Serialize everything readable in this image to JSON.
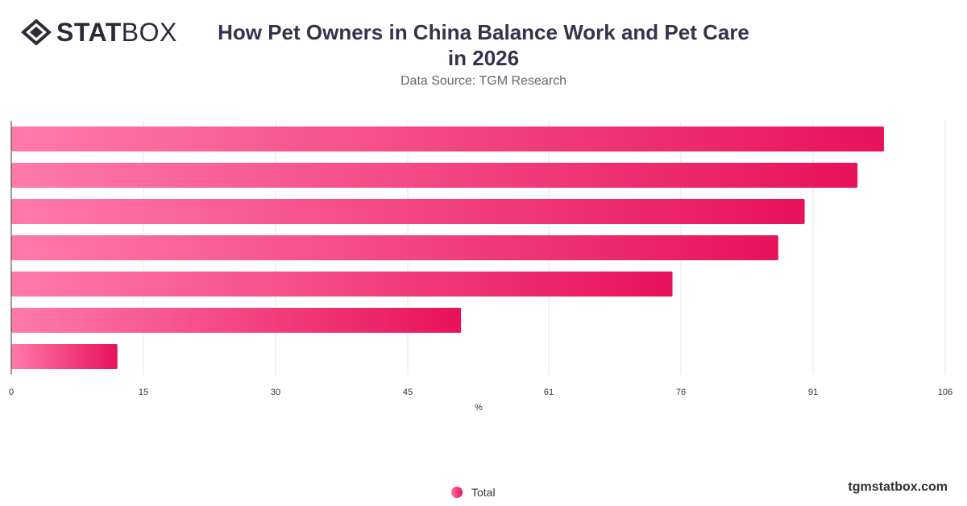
{
  "brand": {
    "logo_bold": "STAT",
    "logo_light": "BOX",
    "website": "tgmstatbox.com"
  },
  "header": {
    "title_line1": "How Pet Owners in China Balance Work and Pet Care",
    "title_line2": "in 2026",
    "subtitle": "Data Source: TGM Research"
  },
  "colors": {
    "bar_start": "#ff7aab",
    "bar_end": "#e8125c",
    "grid": "#e6e6e6",
    "axis": "#333333",
    "text": "#333333"
  },
  "chart_data": {
    "type": "bar",
    "orientation": "horizontal",
    "categories": [
      "",
      "",
      "",
      "",
      "",
      "",
      ""
    ],
    "series": [
      {
        "name": "Total",
        "values": [
          99,
          96,
          90,
          87,
          75,
          51,
          12
        ]
      }
    ],
    "xlabel": "%",
    "ylabel": "",
    "xlim": [
      0,
      106
    ],
    "xticks": [
      0,
      15,
      30,
      45,
      61,
      76,
      91,
      106
    ],
    "grid": true,
    "legend": "bottom-center"
  }
}
